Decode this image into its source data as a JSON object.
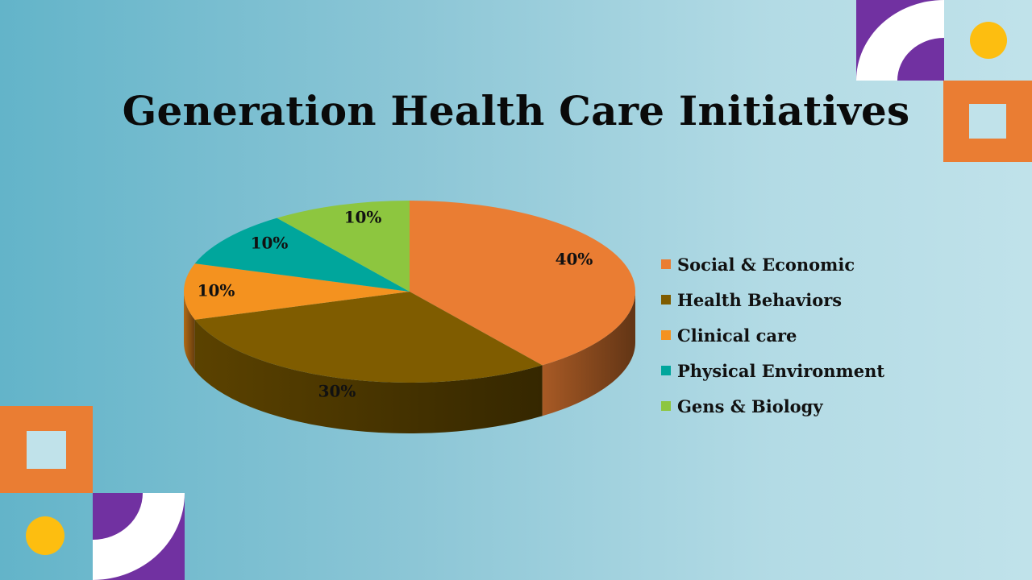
{
  "slide": {
    "title": "Generation Health Care Initiatives"
  },
  "colors": {
    "orange": "#ea7d33",
    "purple": "#7131a1",
    "yellow": "#fdbe10",
    "pale": "#c0e2ea",
    "white": "#ffffff"
  },
  "chart_data": {
    "type": "pie",
    "style": "3d",
    "title": "",
    "legend_position": "right",
    "slices": [
      {
        "label": "Social & Economic",
        "value": 40,
        "value_label": "40%",
        "color": "#ea7d33"
      },
      {
        "label": "Health Behaviors",
        "value": 30,
        "value_label": "30%",
        "color": "#7f5c00"
      },
      {
        "label": "Clinical care",
        "value": 10,
        "value_label": "10%",
        "color": "#f4921f"
      },
      {
        "label": "Physical Environment",
        "value": 10,
        "value_label": "10%",
        "color": "#00a69c"
      },
      {
        "label": "Gens & Biology",
        "value": 10,
        "value_label": "10%",
        "color": "#8dc63f"
      }
    ]
  }
}
